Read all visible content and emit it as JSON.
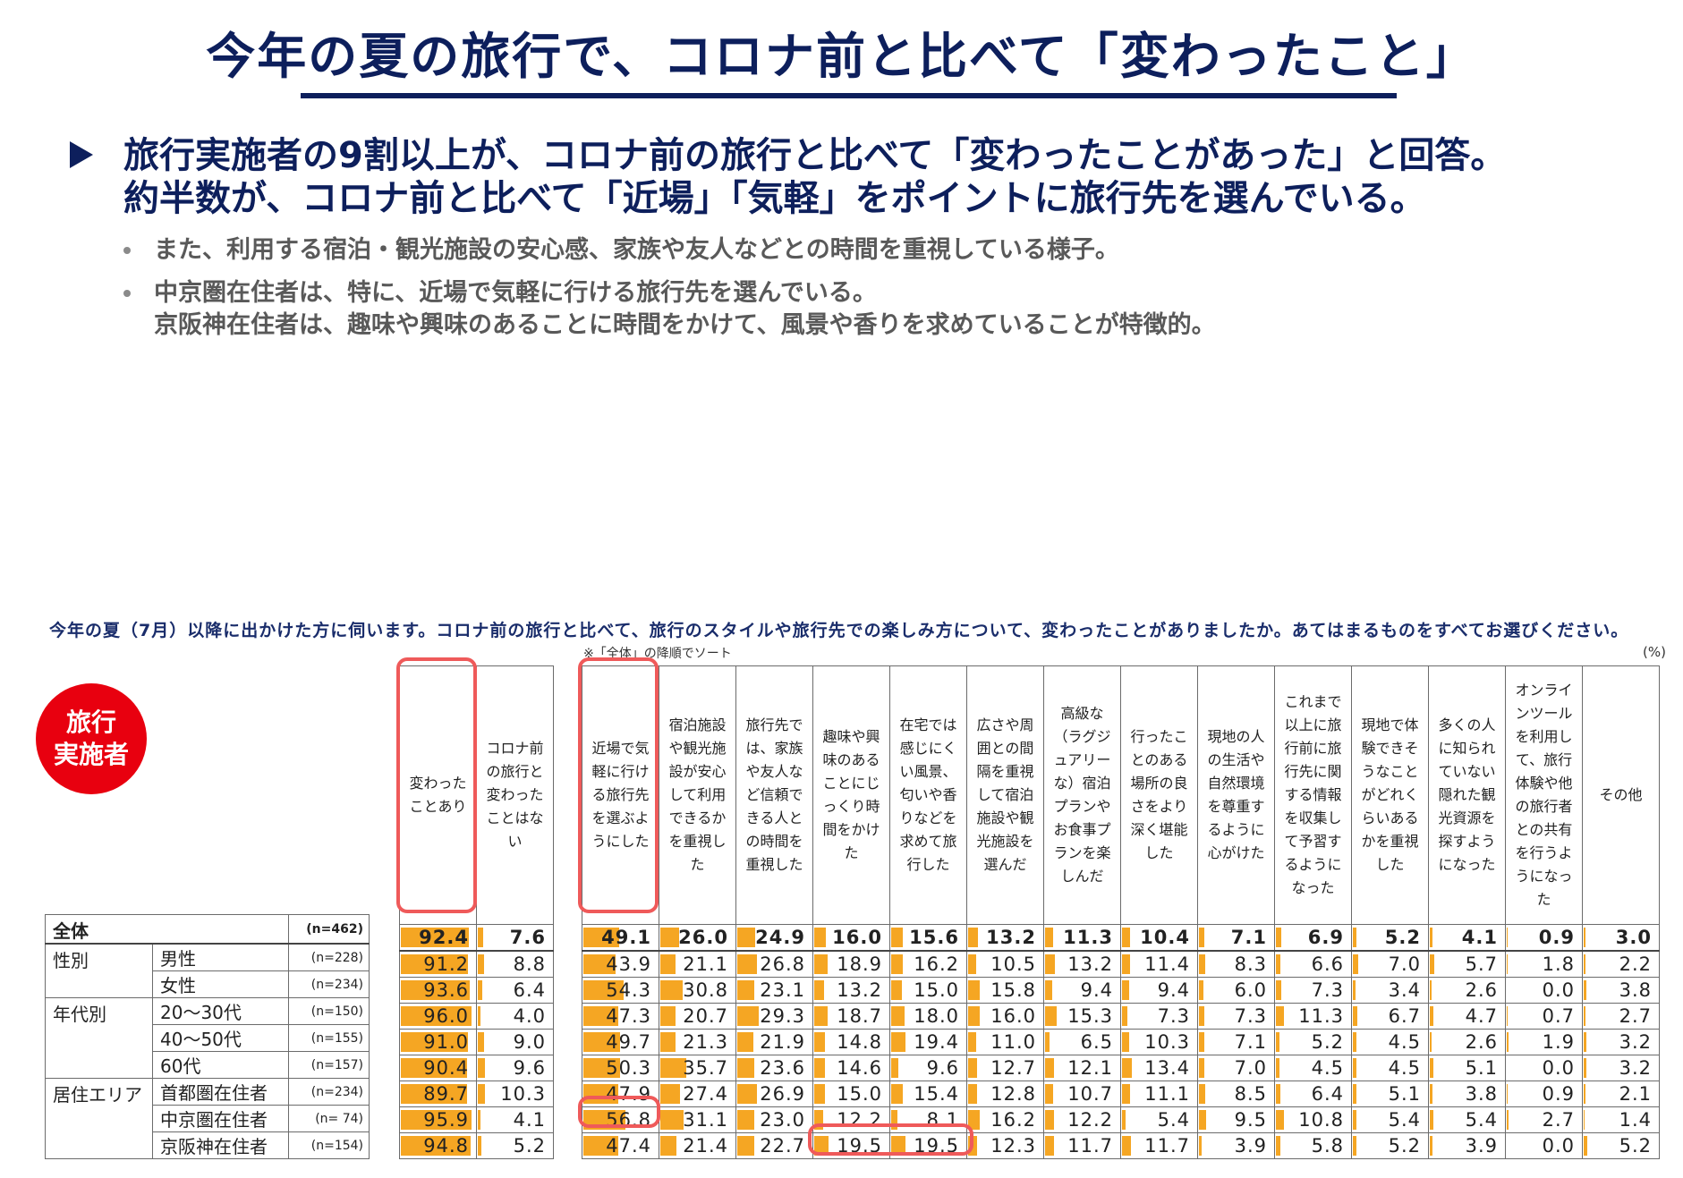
{
  "title": "今年の夏の旅行で、コロナ前と比べて「変わったこと」",
  "main_point": {
    "line1": "旅行実施者の9割以上が、コロナ前の旅行と比べて「変わったことがあった」と回答。",
    "line2": "約半数が、コロナ前と比べて「近場」「気軽」をポイントに旅行先を選んでいる。"
  },
  "sub_points": [
    "また、利用する宿泊・観光施設の安心感、家族や友人などとの時間を重視している様子。",
    "中京圏在住者は、特に、近場で気軽に行ける旅行先を選んでいる。",
    "京阪神在住者は、趣味や興味のあることに時間をかけて、風景や香りを求めていることが特徴的。"
  ],
  "question": "今年の夏（7月）以降に出かけた方に伺います。コロナ前の旅行と比べて、旅行のスタイルや旅行先での楽しみ方について、変わったことがありましたか。あてはまるものをすべてお選びください。",
  "sort_note": "※「全体」の降順でソート",
  "unit": "(%)",
  "badge": {
    "line1": "旅行",
    "line2": "実施者"
  },
  "colors": {
    "bar": "#f5a623",
    "highlight": "#ef5a5a",
    "badge": "#e8000f",
    "title": "#0d1f5c"
  },
  "columns_a": [
    "変わったことあり",
    "コロナ前の旅行と変わったことはない"
  ],
  "columns_b": [
    "近場で気軽に行ける旅行先を選ぶようにした",
    "宿泊施設や観光施設が安心して利用できるかを重視した",
    "旅行先では、家族や友人など信頼できる人との時間を重視した",
    "趣味や興味のあることにじっくり時間をかけた",
    "在宅では感じにくい風景、匂いや香りなどを求めて旅行した",
    "広さや周囲との間隔を重視して宿泊施設や観光施設を選んだ",
    "高級な（ラグジュアリーな）宿泊プランやお食事プランを楽しんだ",
    "行ったことのある場所の良さをより深く堪能した",
    "現地の人の生活や自然環境を尊重するように心がけた",
    "これまで以上に旅行前に旅行先に関する情報を収集して予習するようになった",
    "現地で体験できそうなことがどれくらいあるかを重視した",
    "多くの人に知られていない隠れた観光資源を探すようになった",
    "オンラインツールを利用して、旅行体験や他の旅行者との共有を行うようになった",
    "その他"
  ],
  "rows": [
    {
      "group": "全体",
      "label": "",
      "n": "(n=462)",
      "a": [
        "92.4",
        "7.6"
      ],
      "b": [
        "49.1",
        "26.0",
        "24.9",
        "16.0",
        "15.6",
        "13.2",
        "11.3",
        "10.4",
        "7.1",
        "6.9",
        "5.2",
        "4.1",
        "0.9",
        "3.0"
      ]
    },
    {
      "group": "性別",
      "label": "男性",
      "n": "(n=228)",
      "a": [
        "91.2",
        "8.8"
      ],
      "b": [
        "43.9",
        "21.1",
        "26.8",
        "18.9",
        "16.2",
        "10.5",
        "13.2",
        "11.4",
        "8.3",
        "6.6",
        "7.0",
        "5.7",
        "1.8",
        "2.2"
      ]
    },
    {
      "group": "",
      "label": "女性",
      "n": "(n=234)",
      "a": [
        "93.6",
        "6.4"
      ],
      "b": [
        "54.3",
        "30.8",
        "23.1",
        "13.2",
        "15.0",
        "15.8",
        "9.4",
        "9.4",
        "6.0",
        "7.3",
        "3.4",
        "2.6",
        "0.0",
        "3.8"
      ]
    },
    {
      "group": "年代別",
      "label": "20～30代",
      "n": "(n=150)",
      "a": [
        "96.0",
        "4.0"
      ],
      "b": [
        "47.3",
        "20.7",
        "29.3",
        "18.7",
        "18.0",
        "16.0",
        "15.3",
        "7.3",
        "7.3",
        "11.3",
        "6.7",
        "4.7",
        "0.7",
        "2.7"
      ]
    },
    {
      "group": "",
      "label": "40～50代",
      "n": "(n=155)",
      "a": [
        "91.0",
        "9.0"
      ],
      "b": [
        "49.7",
        "21.3",
        "21.9",
        "14.8",
        "19.4",
        "11.0",
        "6.5",
        "10.3",
        "7.1",
        "5.2",
        "4.5",
        "2.6",
        "1.9",
        "3.2"
      ]
    },
    {
      "group": "",
      "label": "60代",
      "n": "(n=157)",
      "a": [
        "90.4",
        "9.6"
      ],
      "b": [
        "50.3",
        "35.7",
        "23.6",
        "14.6",
        "9.6",
        "12.7",
        "12.1",
        "13.4",
        "7.0",
        "4.5",
        "4.5",
        "5.1",
        "0.0",
        "3.2"
      ]
    },
    {
      "group": "居住エリア",
      "label": "首都圏在住者",
      "n": "(n=234)",
      "a": [
        "89.7",
        "10.3"
      ],
      "b": [
        "47.9",
        "27.4",
        "26.9",
        "15.0",
        "15.4",
        "12.8",
        "10.7",
        "11.1",
        "8.5",
        "6.4",
        "5.1",
        "3.8",
        "0.9",
        "2.1"
      ]
    },
    {
      "group": "",
      "label": "中京圏在住者",
      "n": "(n=  74)",
      "a": [
        "95.9",
        "4.1"
      ],
      "b": [
        "56.8",
        "31.1",
        "23.0",
        "12.2",
        "8.1",
        "16.2",
        "12.2",
        "5.4",
        "9.5",
        "10.8",
        "5.4",
        "5.4",
        "2.7",
        "1.4"
      ]
    },
    {
      "group": "",
      "label": "京阪神在住者",
      "n": "(n=154)",
      "a": [
        "94.8",
        "5.2"
      ],
      "b": [
        "47.4",
        "21.4",
        "22.7",
        "19.5",
        "19.5",
        "12.3",
        "11.7",
        "11.7",
        "3.9",
        "5.8",
        "5.2",
        "3.9",
        "0.0",
        "5.2"
      ]
    }
  ]
}
